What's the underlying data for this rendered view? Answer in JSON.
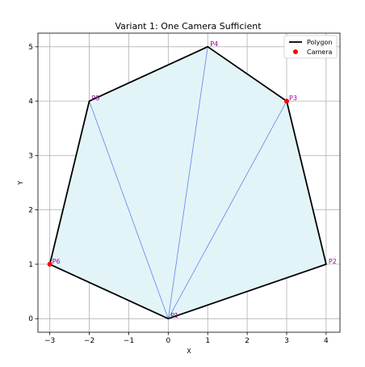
{
  "chart_data": {
    "type": "scatter",
    "title": "Variant 1: One Camera Sufficient",
    "xlabel": "X",
    "ylabel": "Y",
    "xlim": [
      -3.3,
      4.35
    ],
    "ylim": [
      -0.25,
      5.25
    ],
    "xticks": [
      "−3",
      "−2",
      "−1",
      "0",
      "1",
      "2",
      "3",
      "4"
    ],
    "yticks": [
      "0",
      "1",
      "2",
      "3",
      "4",
      "5"
    ],
    "grid": true,
    "legend_position": "top-right",
    "series": [
      {
        "name": "Polygon",
        "kind": "closed-line",
        "color": "#000000",
        "fill": "#e2f4f7",
        "points": [
          [
            0,
            0
          ],
          [
            4,
            1
          ],
          [
            3,
            4
          ],
          [
            1,
            5
          ],
          [
            -2,
            4
          ],
          [
            -3,
            1
          ]
        ]
      },
      {
        "name": "Camera",
        "kind": "marker",
        "color": "#ff0000",
        "points": [
          [
            -3,
            1
          ],
          [
            3,
            4
          ]
        ]
      }
    ],
    "triangulation": {
      "color": "#4c6cf0",
      "segments": [
        [
          [
            0,
            0
          ],
          [
            3,
            4
          ]
        ],
        [
          [
            0,
            0
          ],
          [
            1,
            5
          ]
        ],
        [
          [
            0,
            0
          ],
          [
            -2,
            4
          ]
        ]
      ]
    },
    "vertex_labels": [
      {
        "text": "P1",
        "x": 0,
        "y": 0
      },
      {
        "text": "P2",
        "x": 4,
        "y": 1
      },
      {
        "text": "P3",
        "x": 3,
        "y": 4
      },
      {
        "text": "P4",
        "x": 1,
        "y": 5
      },
      {
        "text": "P5",
        "x": -2,
        "y": 4
      },
      {
        "text": "P6",
        "x": -3,
        "y": 1
      }
    ]
  }
}
